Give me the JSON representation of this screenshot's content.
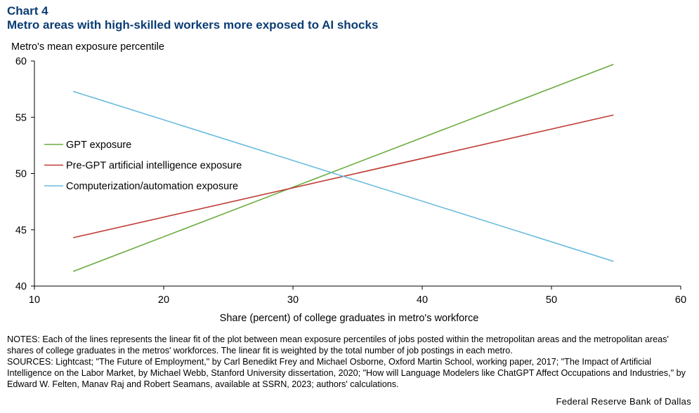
{
  "header": {
    "chart_label": "Chart 4",
    "title": "Metro areas with high-skilled workers more exposed to AI shocks"
  },
  "chart_data": {
    "type": "line",
    "title": "Metro areas with high-skilled workers more exposed to AI shocks",
    "ylabel": "Metro's mean exposure percentile",
    "xlabel": "Share (percent) of college graduates in metro's workforce",
    "xlim": [
      10,
      60
    ],
    "ylim": [
      40,
      60
    ],
    "x_ticks": [
      10,
      20,
      30,
      40,
      50,
      60
    ],
    "y_ticks": [
      40,
      45,
      50,
      55,
      60
    ],
    "grid": false,
    "legend_placement": "left",
    "series": [
      {
        "name": "GPT exposure",
        "color": "#6aab3e",
        "x": [
          13,
          54.8
        ],
        "values": [
          41.3,
          59.7
        ]
      },
      {
        "name": "Pre-GPT artificial intelligence exposure",
        "color": "#bf3b34",
        "x": [
          13,
          54.8
        ],
        "values": [
          44.3,
          55.2
        ]
      },
      {
        "name": "Computerization/automation exposure",
        "color": "#6bbcdc",
        "x": [
          13,
          54.8
        ],
        "values": [
          57.3,
          42.2
        ]
      }
    ]
  },
  "footer": {
    "notes": "NOTES: Each of the lines represents the linear fit of the plot between mean exposure percentiles of jobs posted within the metropolitan areas and the metropolitan areas' shares of college graduates in the metros' workforces. The linear fit is weighted by the total number of job postings in each metro.",
    "sources": "SOURCES: Lightcast; \"The Future of Employment,\" by Carl Benedikt Frey and Michael Osborne, Oxford Martin School, working paper, 2017; \"The Impact of Artificial Intelligence on the Labor Market, by Michael Webb, Stanford University dissertation, 2020; \"How will Language Modelers like ChatGPT Affect Occupations and Industries,\" by Edward W. Felten, Manav Raj and Robert Seamans, available at SSRN, 2023; authors' calculations.",
    "credit": "Federal Reserve Bank of Dallas"
  }
}
